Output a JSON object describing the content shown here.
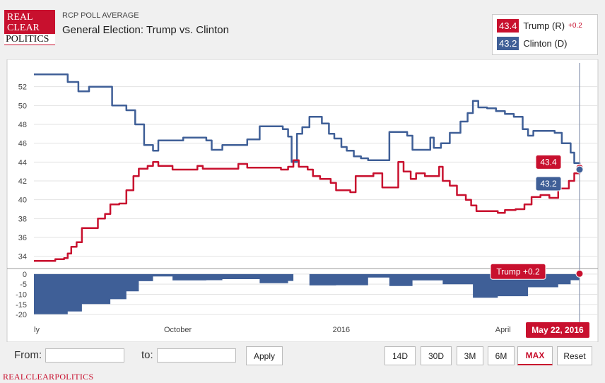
{
  "header": {
    "logo_lines": [
      "REAL",
      "CLEAR",
      "POLITICS"
    ],
    "subtitle": "RCP POLL AVERAGE",
    "title": "General Election: Trump vs. Clinton"
  },
  "legend": {
    "items": [
      {
        "value": "43.4",
        "name": "Trump (R)",
        "change": "+0.2",
        "color": "#c8102e"
      },
      {
        "value": "43.2",
        "name": "Clinton (D)",
        "change": "",
        "color": "#3f5f97"
      }
    ]
  },
  "chart_data": [
    {
      "type": "line",
      "title": "",
      "ylim": [
        33,
        54
      ],
      "y_ticks": [
        34,
        36,
        38,
        40,
        42,
        44,
        46,
        48,
        50,
        52
      ],
      "x_range": [
        "2015-07-20",
        "2016-05-22"
      ],
      "x_tick_labels": [
        {
          "label": "ly",
          "date": "2015-07-20"
        },
        {
          "label": "October",
          "date": "2015-10-01"
        },
        {
          "label": "2016",
          "date": "2016-01-01"
        },
        {
          "label": "April",
          "date": "2016-04-01"
        }
      ],
      "grid": true,
      "series": [
        {
          "name": "Clinton (D)",
          "color": "#3f5f97",
          "points": [
            [
              "2015-07-20",
              53.3
            ],
            [
              "2015-08-01",
              53.3
            ],
            [
              "2015-08-08",
              52.5
            ],
            [
              "2015-08-14",
              51.5
            ],
            [
              "2015-08-20",
              52.0
            ],
            [
              "2015-08-30",
              52.0
            ],
            [
              "2015-09-02",
              50.0
            ],
            [
              "2015-09-10",
              49.5
            ],
            [
              "2015-09-15",
              48.0
            ],
            [
              "2015-09-20",
              45.8
            ],
            [
              "2015-09-25",
              45.2
            ],
            [
              "2015-09-28",
              46.3
            ],
            [
              "2015-10-10",
              46.3
            ],
            [
              "2015-10-12",
              46.6
            ],
            [
              "2015-10-20",
              46.6
            ],
            [
              "2015-10-25",
              46.3
            ],
            [
              "2015-10-28",
              45.3
            ],
            [
              "2015-11-01",
              45.3
            ],
            [
              "2015-11-03",
              45.8
            ],
            [
              "2015-11-15",
              45.8
            ],
            [
              "2015-11-17",
              46.4
            ],
            [
              "2015-11-22",
              46.4
            ],
            [
              "2015-11-24",
              47.8
            ],
            [
              "2015-12-04",
              47.8
            ],
            [
              "2015-12-07",
              47.5
            ],
            [
              "2015-12-10",
              46.7
            ],
            [
              "2015-12-12",
              44.0
            ],
            [
              "2015-12-15",
              47.0
            ],
            [
              "2015-12-18",
              47.7
            ],
            [
              "2015-12-22",
              48.8
            ],
            [
              "2015-12-27",
              48.8
            ],
            [
              "2015-12-29",
              48.1
            ],
            [
              "2016-01-02",
              47.0
            ],
            [
              "2016-01-05",
              46.5
            ],
            [
              "2016-01-09",
              45.6
            ],
            [
              "2016-01-12",
              45.2
            ],
            [
              "2016-01-16",
              44.6
            ],
            [
              "2016-01-20",
              44.4
            ],
            [
              "2016-01-24",
              44.2
            ],
            [
              "2016-02-02",
              44.2
            ],
            [
              "2016-02-05",
              47.2
            ],
            [
              "2016-02-12",
              47.2
            ],
            [
              "2016-02-15",
              46.8
            ],
            [
              "2016-02-18",
              45.3
            ],
            [
              "2016-02-26",
              45.3
            ],
            [
              "2016-02-28",
              46.6
            ],
            [
              "2016-03-01",
              45.5
            ],
            [
              "2016-03-05",
              46.0
            ],
            [
              "2016-03-10",
              47.1
            ],
            [
              "2016-03-16",
              48.3
            ],
            [
              "2016-03-20",
              49.2
            ],
            [
              "2016-03-23",
              50.5
            ],
            [
              "2016-03-26",
              49.8
            ],
            [
              "2016-03-31",
              49.7
            ],
            [
              "2016-04-05",
              49.4
            ],
            [
              "2016-04-10",
              49.1
            ],
            [
              "2016-04-15",
              48.8
            ],
            [
              "2016-04-20",
              47.5
            ],
            [
              "2016-04-23",
              46.8
            ],
            [
              "2016-04-26",
              47.3
            ],
            [
              "2016-05-04",
              47.3
            ],
            [
              "2016-05-08",
              47.1
            ],
            [
              "2016-05-12",
              46.0
            ],
            [
              "2016-05-17",
              45.0
            ],
            [
              "2016-05-19",
              43.9
            ],
            [
              "2016-05-22",
              43.2
            ]
          ]
        },
        {
          "name": "Trump (R)",
          "color": "#c8102e",
          "points": [
            [
              "2015-07-20",
              33.5
            ],
            [
              "2015-07-30",
              33.5
            ],
            [
              "2015-08-01",
              33.7
            ],
            [
              "2015-08-06",
              33.8
            ],
            [
              "2015-08-08",
              34.3
            ],
            [
              "2015-08-10",
              35.0
            ],
            [
              "2015-08-13",
              35.5
            ],
            [
              "2015-08-16",
              37.0
            ],
            [
              "2015-08-23",
              37.0
            ],
            [
              "2015-08-25",
              38.0
            ],
            [
              "2015-08-29",
              38.5
            ],
            [
              "2015-09-01",
              39.5
            ],
            [
              "2015-09-06",
              39.6
            ],
            [
              "2015-09-10",
              41.0
            ],
            [
              "2015-09-14",
              42.5
            ],
            [
              "2015-09-17",
              43.3
            ],
            [
              "2015-09-22",
              43.6
            ],
            [
              "2015-09-25",
              44.0
            ],
            [
              "2015-09-28",
              43.6
            ],
            [
              "2015-10-03",
              43.6
            ],
            [
              "2015-10-06",
              43.2
            ],
            [
              "2015-10-16",
              43.2
            ],
            [
              "2015-10-20",
              43.6
            ],
            [
              "2015-10-23",
              43.3
            ],
            [
              "2015-11-10",
              43.3
            ],
            [
              "2015-11-12",
              43.8
            ],
            [
              "2015-11-17",
              43.4
            ],
            [
              "2015-12-02",
              43.4
            ],
            [
              "2015-12-06",
              43.2
            ],
            [
              "2015-12-10",
              43.5
            ],
            [
              "2015-12-13",
              44.2
            ],
            [
              "2015-12-16",
              43.5
            ],
            [
              "2015-12-21",
              43.2
            ],
            [
              "2015-12-24",
              42.5
            ],
            [
              "2015-12-28",
              42.2
            ],
            [
              "2016-01-03",
              41.8
            ],
            [
              "2016-01-06",
              41.0
            ],
            [
              "2016-01-14",
              40.8
            ],
            [
              "2016-01-17",
              42.5
            ],
            [
              "2016-01-24",
              42.5
            ],
            [
              "2016-01-27",
              42.8
            ],
            [
              "2016-02-01",
              41.3
            ],
            [
              "2016-02-08",
              41.3
            ],
            [
              "2016-02-10",
              44.0
            ],
            [
              "2016-02-13",
              43.0
            ],
            [
              "2016-02-17",
              42.2
            ],
            [
              "2016-02-20",
              42.8
            ],
            [
              "2016-02-25",
              42.5
            ],
            [
              "2016-03-02",
              42.5
            ],
            [
              "2016-03-04",
              43.5
            ],
            [
              "2016-03-06",
              42.0
            ],
            [
              "2016-03-10",
              41.5
            ],
            [
              "2016-03-14",
              40.5
            ],
            [
              "2016-03-19",
              40.0
            ],
            [
              "2016-03-22",
              39.4
            ],
            [
              "2016-03-25",
              38.8
            ],
            [
              "2016-04-02",
              38.8
            ],
            [
              "2016-04-06",
              38.6
            ],
            [
              "2016-04-10",
              38.9
            ],
            [
              "2016-04-16",
              39.0
            ],
            [
              "2016-04-21",
              39.5
            ],
            [
              "2016-04-25",
              40.3
            ],
            [
              "2016-04-30",
              40.5
            ],
            [
              "2016-05-05",
              40.2
            ],
            [
              "2016-05-10",
              41.2
            ],
            [
              "2016-05-16",
              42.0
            ],
            [
              "2016-05-19",
              42.8
            ],
            [
              "2016-05-22",
              43.4
            ]
          ]
        }
      ],
      "annotations": [
        {
          "label": "43.4",
          "series": "Trump (R)"
        },
        {
          "label": "43.2",
          "series": "Clinton (D)"
        }
      ]
    },
    {
      "type": "area",
      "title": "",
      "ylim": [
        -21,
        1
      ],
      "y_ticks": [
        0,
        -5,
        -10,
        -15,
        -20
      ],
      "x_range": [
        "2015-07-20",
        "2016-05-22"
      ],
      "series": [
        {
          "name": "Trump (R) minus Clinton (D)",
          "color": "#3f5f97",
          "points": [
            [
              "2015-07-20",
              -19.8
            ],
            [
              "2015-08-08",
              -18.5
            ],
            [
              "2015-08-16",
              -14.8
            ],
            [
              "2015-09-01",
              -12.4
            ],
            [
              "2015-09-10",
              -8.5
            ],
            [
              "2015-09-17",
              -3.5
            ],
            [
              "2015-09-25",
              -1.2
            ],
            [
              "2015-10-06",
              -3.1
            ],
            [
              "2015-10-25",
              -3.0
            ],
            [
              "2015-11-03",
              -2.5
            ],
            [
              "2015-11-24",
              -4.5
            ],
            [
              "2015-12-10",
              -3.4
            ],
            [
              "2015-12-13",
              0.0
            ],
            [
              "2015-12-22",
              -5.6
            ],
            [
              "2016-01-06",
              -5.5
            ],
            [
              "2016-01-24",
              -1.7
            ],
            [
              "2016-02-05",
              -5.9
            ],
            [
              "2016-02-18",
              -3.1
            ],
            [
              "2016-03-06",
              -5.0
            ],
            [
              "2016-03-23",
              -11.7
            ],
            [
              "2016-04-06",
              -10.9
            ],
            [
              "2016-04-23",
              -6.5
            ],
            [
              "2016-05-10",
              -5.0
            ],
            [
              "2016-05-17",
              -3.0
            ],
            [
              "2016-05-22",
              0.2
            ]
          ]
        }
      ],
      "annotation": {
        "label": "Trump +0.2"
      }
    }
  ],
  "crosshair_date_label": "May 22, 2016",
  "controls": {
    "from_label": "From:",
    "to_label": "to:",
    "from_value": "",
    "to_value": "",
    "apply_label": "Apply",
    "ranges": [
      "14D",
      "30D",
      "3M",
      "6M",
      "MAX"
    ],
    "active_range": "MAX",
    "reset_label": "Reset"
  },
  "footer": {
    "text": "REALCLEARPOLITICS"
  }
}
